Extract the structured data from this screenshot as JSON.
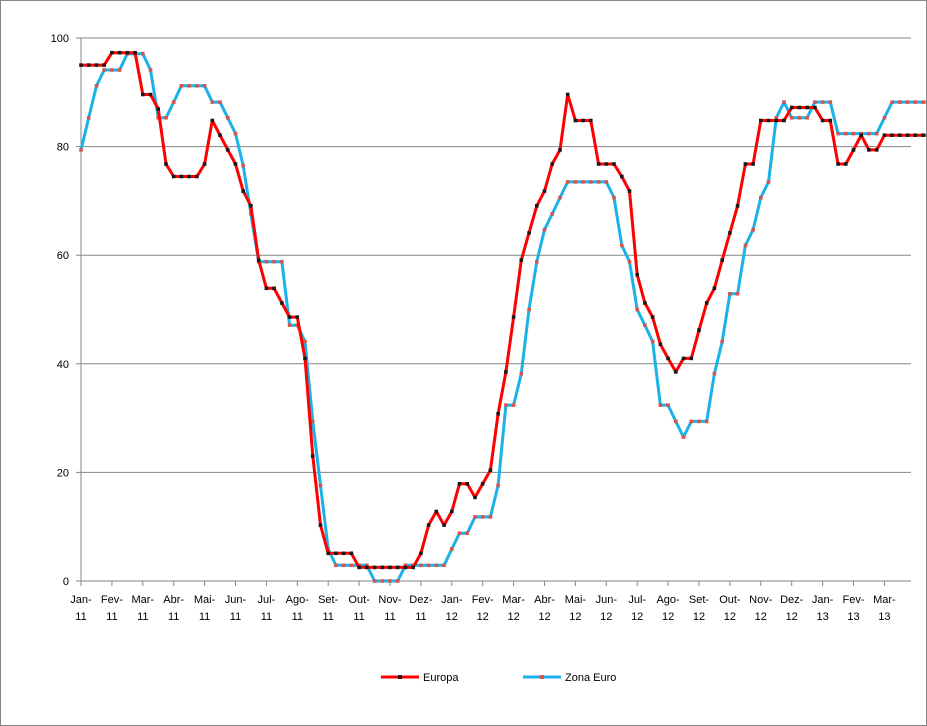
{
  "chart_data": {
    "type": "line",
    "title": "",
    "xlabel": "",
    "ylabel": "",
    "ylim": [
      0,
      100
    ],
    "y_ticks": [
      "0",
      "20",
      "40",
      "60",
      "80",
      "100"
    ],
    "grid": "horizontal",
    "legend_position": "bottom",
    "x_tick_labels": [
      [
        "Jan-",
        "11"
      ],
      [
        "Fev-",
        "11"
      ],
      [
        "Mar-",
        "11"
      ],
      [
        "Abr-",
        "11"
      ],
      [
        "Mai-",
        "11"
      ],
      [
        "Jun-",
        "11"
      ],
      [
        "Jul-",
        "11"
      ],
      [
        "Ago-",
        "11"
      ],
      [
        "Set-",
        "11"
      ],
      [
        "Out-",
        "11"
      ],
      [
        "Nov-",
        "11"
      ],
      [
        "Dez-",
        "11"
      ],
      [
        "Jan-",
        "12"
      ],
      [
        "Fev-",
        "12"
      ],
      [
        "Mar-",
        "12"
      ],
      [
        "Abr-",
        "12"
      ],
      [
        "Mai-",
        "12"
      ],
      [
        "Jun-",
        "12"
      ],
      [
        "Jul-",
        "12"
      ],
      [
        "Ago-",
        "12"
      ],
      [
        "Set-",
        "12"
      ],
      [
        "Out-",
        "12"
      ],
      [
        "Nov-",
        "12"
      ],
      [
        "Dez-",
        "12"
      ],
      [
        "Jan-",
        "13"
      ],
      [
        "Fev-",
        "13"
      ],
      [
        "Mar-",
        "13"
      ]
    ],
    "points_per_month": 4,
    "series": [
      {
        "name": "Europa",
        "color": "#ff0000",
        "marker_color": "#1a1a1a",
        "values": [
          95,
          95,
          95,
          95,
          97.3,
          97.3,
          97.3,
          97.3,
          89.6,
          89.6,
          86.9,
          76.8,
          74.5,
          74.5,
          74.5,
          74.5,
          76.8,
          84.8,
          82.1,
          79.4,
          76.8,
          71.8,
          69.1,
          59.1,
          53.9,
          53.9,
          51.2,
          48.6,
          48.6,
          41,
          23,
          10.3,
          5.1,
          5.1,
          5.1,
          5.1,
          2.5,
          2.5,
          2.5,
          2.5,
          2.5,
          2.5,
          2.5,
          2.5,
          5.1,
          10.3,
          12.8,
          10.3,
          12.8,
          17.9,
          17.9,
          15.4,
          17.9,
          20.4,
          30.8,
          38.5,
          48.6,
          59.1,
          64.1,
          69.1,
          71.8,
          76.8,
          79.4,
          89.6,
          84.8,
          84.8,
          84.8,
          76.8,
          76.8,
          76.8,
          74.5,
          71.8,
          56.4,
          51.2,
          48.6,
          43.6,
          41,
          38.5,
          41,
          41,
          46.2,
          51.2,
          53.9,
          59.1,
          64.1,
          69.1,
          76.8,
          76.8,
          84.8,
          84.8,
          84.8,
          84.8,
          87.2,
          87.2,
          87.2,
          87.2,
          84.8,
          84.8,
          76.8,
          76.8,
          79.4,
          82.1,
          79.4,
          79.4,
          82.1,
          82.1,
          82.1,
          82.1,
          82.1,
          82.1,
          82.1,
          82.1,
          82.1,
          82.1,
          79.4,
          79.4,
          79.4,
          82.1
        ]
      },
      {
        "name": "Zona Euro",
        "color": "#1ab2e8",
        "marker_color": "#d9534f",
        "values": [
          79.4,
          85.3,
          91.2,
          94.1,
          94.1,
          94.1,
          97.1,
          97.1,
          97.1,
          94.1,
          85.3,
          85.3,
          88.2,
          91.2,
          91.2,
          91.2,
          91.2,
          88.2,
          88.2,
          85.3,
          82.4,
          76.5,
          67.6,
          58.8,
          58.8,
          58.8,
          58.8,
          47.1,
          47.1,
          44.1,
          29.4,
          17.6,
          5.9,
          2.9,
          2.9,
          2.9,
          2.9,
          2.9,
          0,
          0,
          0,
          0,
          2.9,
          2.9,
          2.9,
          2.9,
          2.9,
          2.9,
          5.9,
          8.8,
          8.8,
          11.8,
          11.8,
          11.8,
          17.6,
          32.4,
          32.4,
          38.2,
          50,
          58.8,
          64.7,
          67.6,
          70.6,
          73.5,
          73.5,
          73.5,
          73.5,
          73.5,
          73.5,
          70.6,
          61.8,
          58.8,
          50,
          47.1,
          44.1,
          32.4,
          32.4,
          29.4,
          26.5,
          29.4,
          29.4,
          29.4,
          38.2,
          44.1,
          52.9,
          52.9,
          61.8,
          64.7,
          70.6,
          73.5,
          85.3,
          88.2,
          85.3,
          85.3,
          85.3,
          88.2,
          88.2,
          88.2,
          82.4,
          82.4,
          82.4,
          82.4,
          82.4,
          82.4,
          85.3,
          88.2,
          88.2,
          88.2,
          88.2,
          88.2,
          88.2,
          88.2,
          88.2,
          88.2,
          88.2,
          88.2,
          85.3,
          85.3,
          85.3
        ]
      }
    ]
  }
}
